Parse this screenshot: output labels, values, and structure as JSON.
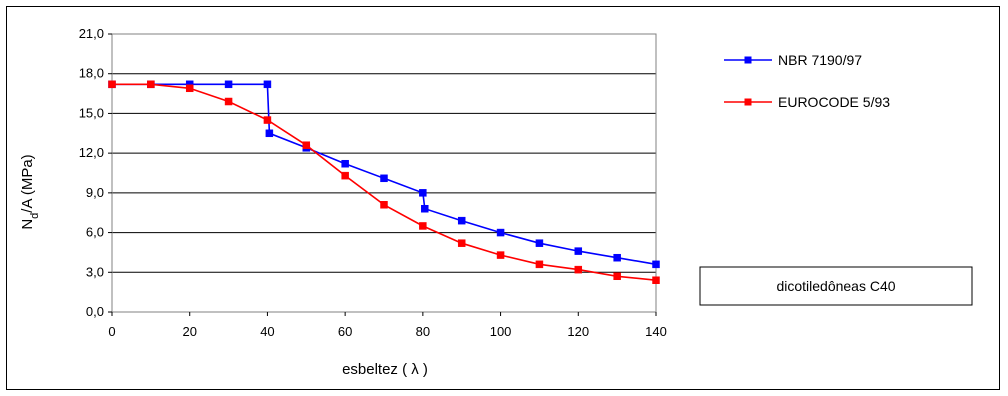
{
  "chart_data": {
    "type": "line",
    "xlabel": "esbeltez ( λ )",
    "ylabel": "Nd/A (MPa)",
    "ylabel_main": "N",
    "ylabel_sub": "d",
    "ylabel_rest": "/A  (MPa)",
    "xlim": [
      0,
      140
    ],
    "ylim": [
      0,
      21
    ],
    "xticks": [
      "0",
      "20",
      "40",
      "60",
      "80",
      "100",
      "120",
      "140"
    ],
    "yticks": [
      "0,0",
      "3,0",
      "6,0",
      "9,0",
      "12,0",
      "15,0",
      "18,0",
      "21,0"
    ],
    "grid": "horizontal",
    "legend_position": "right",
    "annotation": "dicotiledôneas C40",
    "series": [
      {
        "name": "NBR 7190/97",
        "color": "#0000ff",
        "points": [
          [
            0,
            17.2
          ],
          [
            10,
            17.2
          ],
          [
            20,
            17.2
          ],
          [
            30,
            17.2
          ],
          [
            40,
            17.2
          ],
          [
            40.5,
            13.5
          ],
          [
            50,
            12.4
          ],
          [
            60,
            11.2
          ],
          [
            70,
            10.1
          ],
          [
            80,
            9.0
          ],
          [
            80.5,
            7.8
          ],
          [
            90,
            6.9
          ],
          [
            100,
            6.0
          ],
          [
            110,
            5.2
          ],
          [
            120,
            4.6
          ],
          [
            130,
            4.1
          ],
          [
            140,
            3.6
          ]
        ]
      },
      {
        "name": "EUROCODE 5/93",
        "color": "#ff0000",
        "points": [
          [
            0,
            17.2
          ],
          [
            10,
            17.2
          ],
          [
            20,
            16.9
          ],
          [
            30,
            15.9
          ],
          [
            40,
            14.5
          ],
          [
            50,
            12.6
          ],
          [
            60,
            10.3
          ],
          [
            70,
            8.1
          ],
          [
            80,
            6.5
          ],
          [
            90,
            5.2
          ],
          [
            100,
            4.3
          ],
          [
            110,
            3.6
          ],
          [
            120,
            3.2
          ],
          [
            130,
            2.7
          ],
          [
            140,
            2.4
          ]
        ]
      }
    ]
  }
}
